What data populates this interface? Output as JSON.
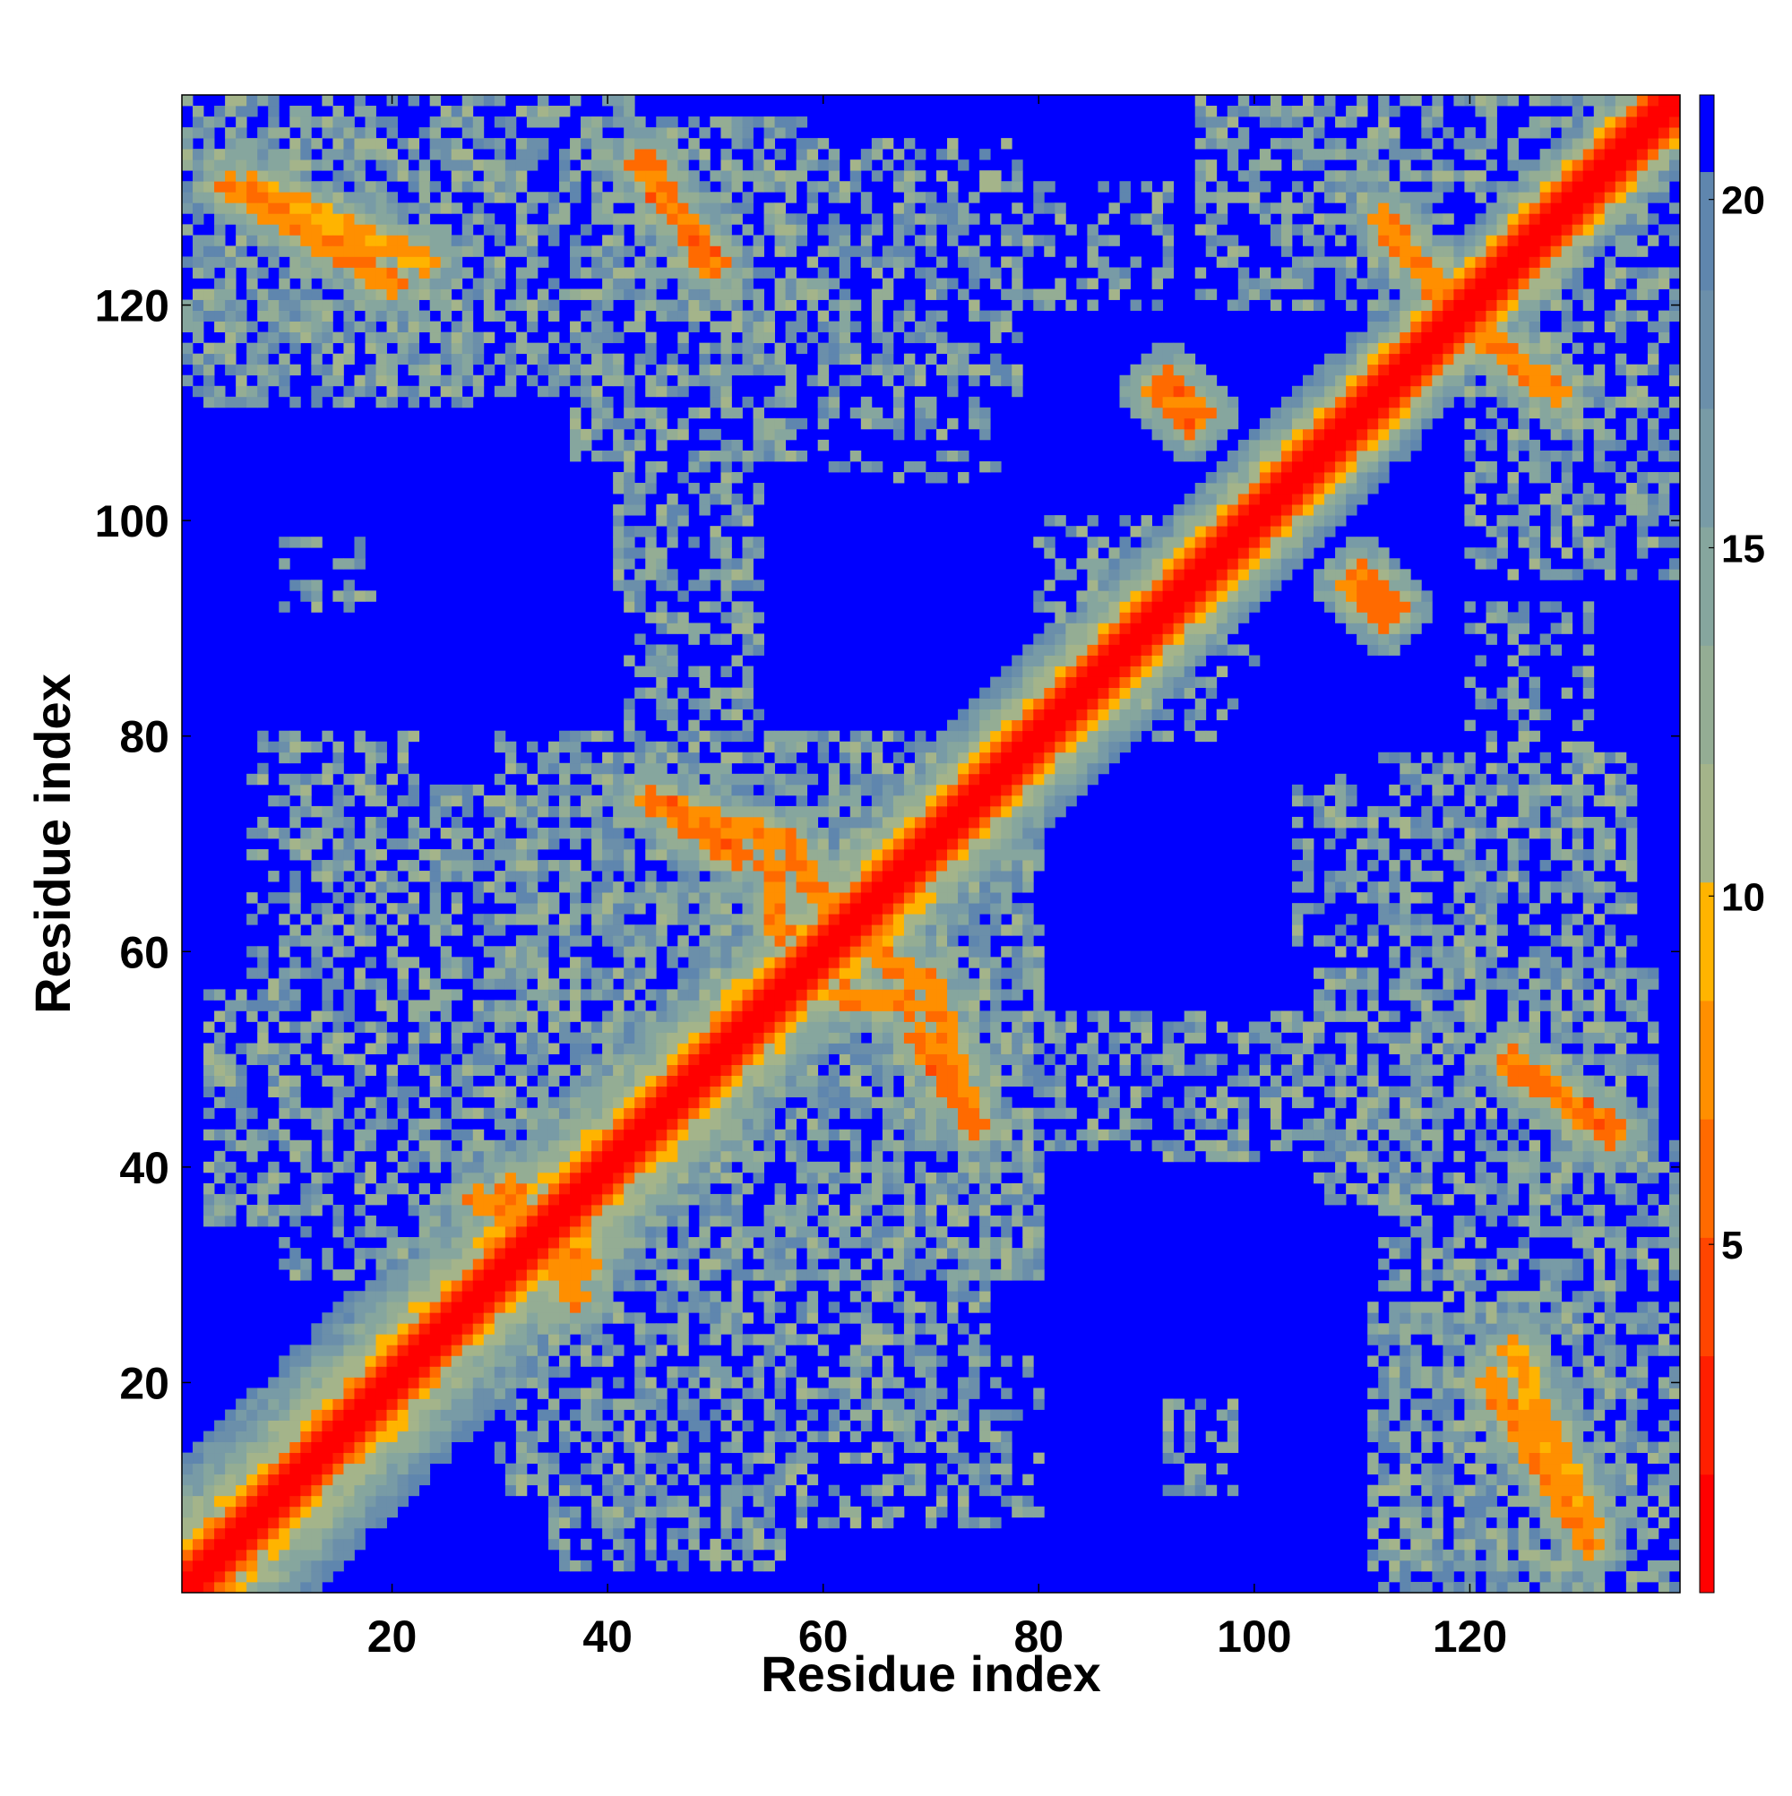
{
  "chart_data": {
    "type": "heatmap",
    "title": "",
    "xlabel": "Residue index",
    "ylabel": "Residue index",
    "n_residues": 139,
    "xlim": [
      1,
      139
    ],
    "ylim": [
      1,
      139
    ],
    "x_ticks": [
      20,
      40,
      60,
      80,
      100,
      120
    ],
    "y_ticks": [
      20,
      40,
      60,
      80,
      100,
      120
    ],
    "colorbar": {
      "ticks": [
        5,
        10,
        15,
        20
      ],
      "range": [
        0,
        21.5
      ],
      "boundaries": [
        0,
        1.7,
        3.4,
        5.1,
        6.8,
        8.5,
        10.2,
        11.9,
        13.6,
        15.3,
        17.0,
        18.7,
        20.4,
        21.5
      ],
      "colors": [
        "#ff0000",
        "#ff1f00",
        "#ff4500",
        "#ff6a00",
        "#ff8f00",
        "#ffb400",
        "#a4b48a",
        "#94ad94",
        "#86a69e",
        "#789ba6",
        "#6b8faa",
        "#5f86ae",
        "#0000ff"
      ]
    },
    "background_value": 21.5,
    "diagonal": {
      "core_half_width": 2.2,
      "orange_half_width": 3.5,
      "halo_half_width_start": 13,
      "halo_half_width_end": 7
    },
    "contacts": [
      {
        "a1": 44,
        "b1": 133,
        "a2": 49,
        "b2": 124,
        "distance": 5
      },
      {
        "a1": 5,
        "b1": 131,
        "a2": 20,
        "b2": 122,
        "distance": 6
      },
      {
        "a1": 44,
        "b1": 74,
        "a2": 57,
        "b2": 70,
        "distance": 6
      },
      {
        "a1": 69,
        "b1": 52,
        "a2": 74,
        "b2": 44,
        "distance": 5
      },
      {
        "a1": 124,
        "b1": 50,
        "a2": 133,
        "b2": 43,
        "distance": 5
      },
      {
        "a1": 124,
        "b1": 23,
        "a2": 131,
        "b2": 7,
        "distance": 7
      },
      {
        "a1": 112,
        "b1": 128,
        "a2": 118,
        "b2": 120,
        "distance": 6
      },
      {
        "a1": 120,
        "b1": 119,
        "a2": 126,
        "b2": 113,
        "distance": 6
      },
      {
        "a1": 91,
        "b1": 112,
        "a2": 94,
        "b2": 109,
        "distance": 5
      },
      {
        "a1": 110,
        "b1": 95,
        "a2": 113,
        "b2": 92,
        "distance": 5
      },
      {
        "a1": 58,
        "b1": 68,
        "a2": 61,
        "b2": 63,
        "distance": 6
      },
      {
        "a1": 62,
        "b1": 56,
        "a2": 68,
        "b2": 55,
        "distance": 6
      },
      {
        "a1": 28,
        "b1": 37,
        "a2": 38,
        "b2": 31,
        "distance": 6
      }
    ],
    "patches": [
      {
        "x0": 3,
        "x1": 27,
        "y0": 111,
        "y1": 136,
        "density": 0.72
      },
      {
        "x0": 37,
        "x1": 58,
        "y0": 106,
        "y1": 137,
        "density": 0.68
      },
      {
        "x0": 61,
        "x1": 78,
        "y0": 118,
        "y1": 133,
        "density": 0.5
      },
      {
        "x0": 79,
        "x1": 92,
        "y0": 120,
        "y1": 131,
        "density": 0.35
      },
      {
        "x0": 68,
        "x1": 78,
        "y0": 112,
        "y1": 118,
        "density": 0.35
      },
      {
        "x0": 98,
        "x1": 139,
        "y0": 120,
        "y1": 139,
        "density": 0.55
      },
      {
        "x0": 120,
        "x1": 139,
        "y0": 95,
        "y1": 121,
        "density": 0.5
      },
      {
        "x0": 41,
        "x1": 50,
        "y0": 92,
        "y1": 110,
        "density": 0.55
      },
      {
        "x0": 10,
        "x1": 18,
        "y0": 92,
        "y1": 98,
        "density": 0.45
      },
      {
        "x0": 7,
        "x1": 22,
        "y0": 55,
        "y1": 76,
        "density": 0.45
      },
      {
        "x0": 3,
        "x1": 42,
        "y0": 35,
        "y1": 56,
        "density": 0.55
      },
      {
        "x0": 30,
        "x1": 80,
        "y0": 30,
        "y1": 78,
        "density": 0.7
      },
      {
        "x0": 30,
        "x1": 75,
        "y0": 10,
        "y1": 30,
        "density": 0.55
      },
      {
        "x0": 61,
        "x1": 80,
        "y0": 8,
        "y1": 22,
        "density": 0.4
      },
      {
        "x0": 76,
        "x1": 135,
        "y0": 42,
        "y1": 54,
        "density": 0.45
      },
      {
        "x0": 112,
        "x1": 135,
        "y0": 55,
        "y1": 78,
        "density": 0.55
      },
      {
        "x0": 112,
        "x1": 139,
        "y0": 1,
        "y1": 42,
        "density": 0.55
      },
      {
        "x0": 92,
        "x1": 96,
        "y0": 12,
        "y1": 18,
        "density": 0.4
      },
      {
        "x0": 104,
        "x1": 112,
        "y0": 60,
        "y1": 76,
        "density": 0.35
      },
      {
        "x0": 90,
        "x1": 100,
        "y0": 80,
        "y1": 90,
        "density": 0.4
      }
    ]
  }
}
